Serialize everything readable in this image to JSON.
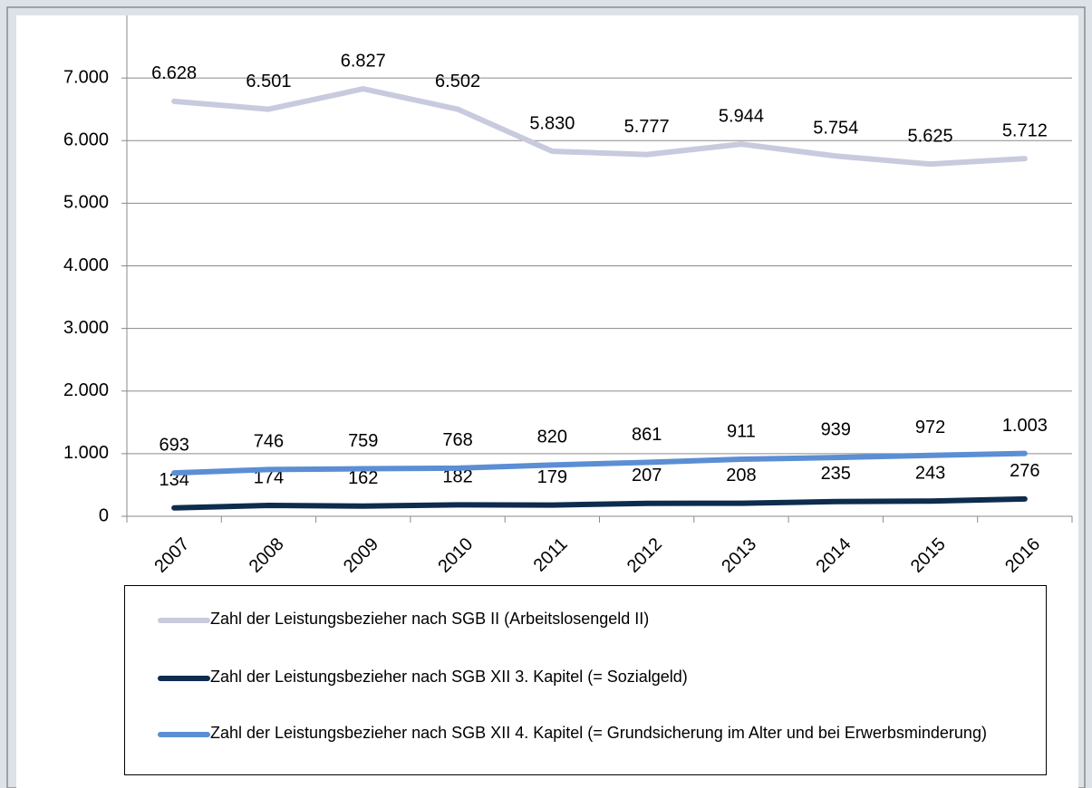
{
  "chart_data": {
    "type": "line",
    "categories": [
      "2007",
      "2008",
      "2009",
      "2010",
      "2011",
      "2012",
      "2013",
      "2014",
      "2015",
      "2016"
    ],
    "series": [
      {
        "name": "Zahl der Leistungsbezieher nach SGB II (Arbeitslosengeld II)",
        "color": "#c8cade",
        "values": [
          6628,
          6501,
          6827,
          6502,
          5830,
          5777,
          5944,
          5754,
          5625,
          5712
        ],
        "value_labels": [
          "6.628",
          "6.501",
          "6.827",
          "6.502",
          "5.830",
          "5.777",
          "5.944",
          "5.754",
          "5.625",
          "5.712"
        ]
      },
      {
        "name": "Zahl der Leistungsbezieher nach  SGB XII 3. Kapitel (= Sozialgeld)",
        "color": "#0d2c4e",
        "values": [
          134,
          174,
          162,
          182,
          179,
          207,
          208,
          235,
          243,
          276
        ],
        "value_labels": [
          "134",
          "174",
          "162",
          "182",
          "179",
          "207",
          "208",
          "235",
          "243",
          "276"
        ]
      },
      {
        "name": "Zahl der Leistungsbezieher nach SGB XII 4. Kapitel (= Grundsicherung im Alter und bei Erwerbsminderung)",
        "color": "#5b8ed4",
        "values": [
          693,
          746,
          759,
          768,
          820,
          861,
          911,
          939,
          972,
          1003
        ],
        "value_labels": [
          "693",
          "746",
          "759",
          "768",
          "820",
          "861",
          "911",
          "939",
          "972",
          "1.003"
        ]
      }
    ],
    "ylim": [
      0,
      8000
    ],
    "yticks": [
      0,
      {
        "value": 1000,
        "label": "1.000"
      },
      {
        "value": 2000,
        "label": "2.000"
      },
      {
        "value": 3000,
        "label": "3.000"
      },
      {
        "value": 4000,
        "label": "4.000"
      },
      {
        "value": 5000,
        "label": "5.000"
      },
      {
        "value": 6000,
        "label": "6.000"
      },
      {
        "value": 7000,
        "label": "7.000"
      }
    ],
    "grid": true
  }
}
